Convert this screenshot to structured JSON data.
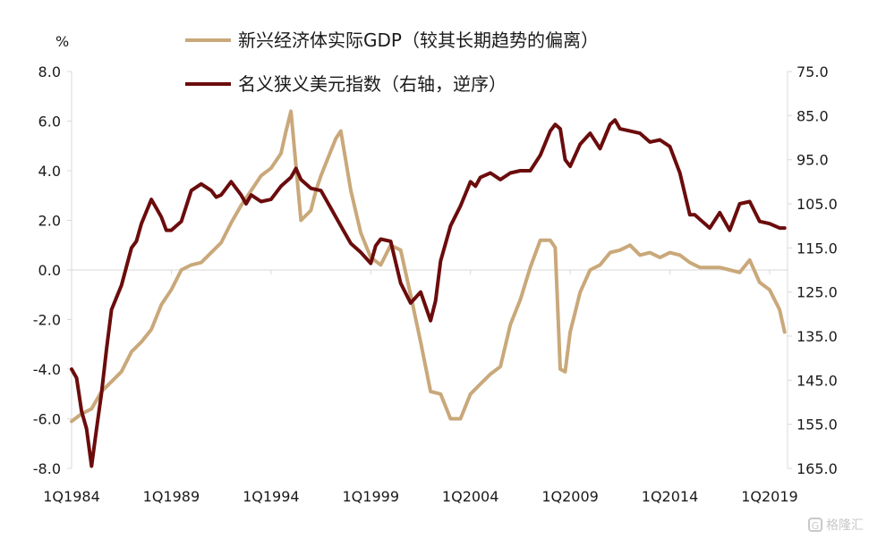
{
  "chart_data": {
    "type": "line",
    "unit_label": "%",
    "legend": [
      {
        "label": "新兴经济体实际GDP（较其长期趋势的偏离）",
        "color": "#c9a87a"
      },
      {
        "label": "名义狭义美元指数（右轴，逆序）",
        "color": "#6b0c0c"
      }
    ],
    "x_tick_labels": [
      "1Q1984",
      "1Q1989",
      "1Q1994",
      "1Q1999",
      "1Q2004",
      "1Q2009",
      "1Q2014",
      "1Q2019"
    ],
    "x_ticks": [
      1984,
      1989,
      1994,
      1999,
      2004,
      2009,
      2014,
      2019
    ],
    "left_axis": {
      "ticks": [
        "8.0",
        "6.0",
        "4.0",
        "2.0",
        "0.0",
        "-2.0",
        "-4.0",
        "-6.0",
        "-8.0"
      ],
      "values": [
        8,
        6,
        4,
        2,
        0,
        -2,
        -4,
        -6,
        -8
      ],
      "ylim": [
        -8,
        8
      ]
    },
    "right_axis": {
      "ticks": [
        "75.0",
        "85.0",
        "95.0",
        "105.0",
        "115.0",
        "125.0",
        "135.0",
        "145.0",
        "155.0",
        "165.0"
      ],
      "values": [
        75,
        85,
        95,
        105,
        115,
        125,
        135,
        145,
        155,
        165
      ],
      "ylim": [
        75,
        165
      ],
      "inverted": true
    },
    "series": [
      {
        "name": "新兴经济体实际GDP（较其长期趋势的偏离）",
        "axis": "left",
        "color": "#c9a87a",
        "x": [
          1984.0,
          1984.5,
          1985.0,
          1985.5,
          1986.0,
          1986.5,
          1987.0,
          1987.5,
          1988.0,
          1988.5,
          1989.0,
          1989.5,
          1990.0,
          1990.5,
          1991.0,
          1991.5,
          1992.0,
          1992.5,
          1993.0,
          1993.5,
          1994.0,
          1994.5,
          1994.75,
          1995.0,
          1995.5,
          1996.0,
          1996.25,
          1996.5,
          1997.0,
          1997.25,
          1997.5,
          1998.0,
          1998.5,
          1999.0,
          1999.5,
          2000.0,
          2000.5,
          2001.0,
          2001.5,
          2002.0,
          2002.5,
          2003.0,
          2003.5,
          2004.0,
          2004.5,
          2005.0,
          2005.5,
          2006.0,
          2006.5,
          2007.0,
          2007.5,
          2008.0,
          2008.25,
          2008.5,
          2008.75,
          2009.0,
          2009.25,
          2009.5,
          2010.0,
          2010.5,
          2011.0,
          2011.5,
          2012.0,
          2012.5,
          2013.0,
          2013.5,
          2014.0,
          2014.5,
          2015.0,
          2015.5,
          2016.0,
          2016.5,
          2017.0,
          2017.5,
          2018.0,
          2018.5,
          2019.0,
          2019.5,
          2019.75
        ],
        "values": [
          -6.1,
          -5.8,
          -5.6,
          -4.9,
          -4.5,
          -4.1,
          -3.3,
          -2.9,
          -2.4,
          -1.4,
          -0.8,
          0.0,
          0.2,
          0.3,
          0.7,
          1.1,
          1.9,
          2.6,
          3.2,
          3.8,
          4.1,
          4.7,
          5.6,
          6.4,
          2.0,
          2.4,
          3.2,
          3.8,
          4.8,
          5.3,
          5.6,
          3.2,
          1.5,
          0.5,
          0.2,
          1.0,
          0.8,
          -1.0,
          -2.9,
          -4.9,
          -5.0,
          -6.0,
          -6.0,
          -5.0,
          -4.6,
          -4.2,
          -3.9,
          -2.2,
          -1.2,
          0.1,
          1.2,
          1.2,
          0.9,
          -4.0,
          -4.1,
          -2.5,
          -1.7,
          -0.9,
          0.0,
          0.2,
          0.7,
          0.8,
          1.0,
          0.6,
          0.7,
          0.5,
          0.7,
          0.6,
          0.3,
          0.1,
          0.1,
          0.1,
          0.0,
          -0.1,
          0.4,
          -0.5,
          -0.8,
          -1.6,
          -2.5
        ]
      },
      {
        "name": "名义狭义美元指数（右轴，逆序）",
        "axis": "right",
        "color": "#6b0c0c",
        "x": [
          1984.0,
          1984.25,
          1984.5,
          1984.75,
          1985.0,
          1985.25,
          1985.5,
          1985.75,
          1986.0,
          1986.5,
          1987.0,
          1987.25,
          1987.5,
          1988.0,
          1988.25,
          1988.5,
          1988.75,
          1989.0,
          1989.5,
          1990.0,
          1990.5,
          1991.0,
          1991.25,
          1991.5,
          1992.0,
          1992.5,
          1992.75,
          1993.0,
          1993.5,
          1994.0,
          1994.5,
          1995.0,
          1995.25,
          1995.5,
          1996.0,
          1996.5,
          1997.0,
          1997.5,
          1998.0,
          1998.5,
          1999.0,
          1999.25,
          1999.5,
          2000.0,
          2000.5,
          2001.0,
          2001.5,
          2002.0,
          2002.25,
          2002.5,
          2003.0,
          2003.5,
          2004.0,
          2004.25,
          2004.5,
          2005.0,
          2005.5,
          2006.0,
          2006.5,
          2007.0,
          2007.5,
          2008.0,
          2008.25,
          2008.5,
          2008.75,
          2009.0,
          2009.5,
          2010.0,
          2010.5,
          2011.0,
          2011.25,
          2011.5,
          2012.0,
          2012.5,
          2013.0,
          2013.5,
          2014.0,
          2014.5,
          2015.0,
          2015.25,
          2015.5,
          2016.0,
          2016.5,
          2017.0,
          2017.5,
          2018.0,
          2018.5,
          2019.0,
          2019.5,
          2019.75
        ],
        "values": [
          142.5,
          144.5,
          152.0,
          156.0,
          164.5,
          156.0,
          148.0,
          138.0,
          129.0,
          123.5,
          115.0,
          113.5,
          109.5,
          104.0,
          106.0,
          108.0,
          111.0,
          111.0,
          109.0,
          102.0,
          100.5,
          102.0,
          103.5,
          103.0,
          100.0,
          103.0,
          105.0,
          103.0,
          104.5,
          104.0,
          101.0,
          99.0,
          97.0,
          99.5,
          101.5,
          102.0,
          106.0,
          110.0,
          114.0,
          116.0,
          118.5,
          114.5,
          113.0,
          113.5,
          123.0,
          127.5,
          125.0,
          131.5,
          127.0,
          118.0,
          110.0,
          105.5,
          100.0,
          101.0,
          99.0,
          98.0,
          99.5,
          98.0,
          97.5,
          97.5,
          94.0,
          88.5,
          87.0,
          88.0,
          95.0,
          96.5,
          91.5,
          89.0,
          92.5,
          87.0,
          86.0,
          88.0,
          88.5,
          89.0,
          91.0,
          90.5,
          92.0,
          98.0,
          107.5,
          107.5,
          108.5,
          110.5,
          107.0,
          111.0,
          105.0,
          104.5,
          109.0,
          109.5,
          110.5,
          110.5
        ]
      }
    ]
  },
  "watermark": {
    "icon": "gelonghui-logo-icon",
    "text": "格隆汇"
  }
}
